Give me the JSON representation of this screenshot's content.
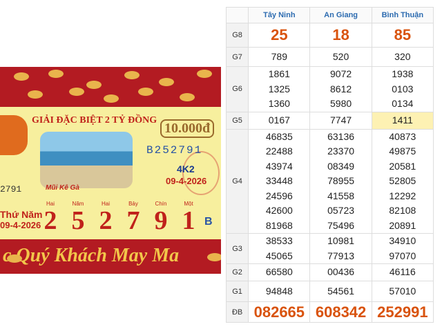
{
  "ticket": {
    "headline": "GIẢI ĐẶC BIỆT 2 TỶ ĐỒNG",
    "price": "10.000đ",
    "serial": "B252791",
    "series_code": "4K2",
    "draw_date": "09-4-2026",
    "place": "Mũi Kê Gà",
    "side_number": "2791",
    "weekday": "Thứ Năm",
    "side_date": "09-4-2026",
    "digit_words": [
      "Hai",
      "Năm",
      "Hai",
      "Bảy",
      "Chín",
      "Một"
    ],
    "digits": [
      "2",
      "5",
      "2",
      "7",
      "9",
      "1"
    ],
    "letter": "B",
    "banner": "c Quý Khách May Ma"
  },
  "table": {
    "headers": [
      "Tây Ninh",
      "An Giang",
      "Bình Thuận"
    ],
    "rows": [
      {
        "label": "G8",
        "cells": [
          [
            "25"
          ],
          [
            "18"
          ],
          [
            "85"
          ]
        ]
      },
      {
        "label": "G7",
        "cells": [
          [
            "789"
          ],
          [
            "520"
          ],
          [
            "320"
          ]
        ]
      },
      {
        "label": "G6",
        "cells": [
          [
            "1861",
            "1325",
            "1360"
          ],
          [
            "9072",
            "8612",
            "5980"
          ],
          [
            "1938",
            "0103",
            "0134"
          ]
        ]
      },
      {
        "label": "G5",
        "cells": [
          [
            "0167"
          ],
          [
            "7747"
          ],
          [
            "1411"
          ]
        ]
      },
      {
        "label": "G4",
        "cells": [
          [
            "46835",
            "22488",
            "43974",
            "33448",
            "24596",
            "42600",
            "81968"
          ],
          [
            "63136",
            "23370",
            "08349",
            "78955",
            "41558",
            "05723",
            "75496"
          ],
          [
            "40873",
            "49875",
            "20581",
            "52805",
            "12292",
            "82108",
            "20891"
          ]
        ]
      },
      {
        "label": "G3",
        "cells": [
          [
            "38533",
            "45065"
          ],
          [
            "10981",
            "77913"
          ],
          [
            "34910",
            "97070"
          ]
        ]
      },
      {
        "label": "G2",
        "cells": [
          [
            "66580"
          ],
          [
            "00436"
          ],
          [
            "46116"
          ]
        ]
      },
      {
        "label": "G1",
        "cells": [
          [
            "94848"
          ],
          [
            "54561"
          ],
          [
            "57010"
          ]
        ]
      },
      {
        "label": "ĐB",
        "cells": [
          [
            "082665"
          ],
          [
            "608342"
          ],
          [
            "252991"
          ]
        ]
      }
    ]
  }
}
